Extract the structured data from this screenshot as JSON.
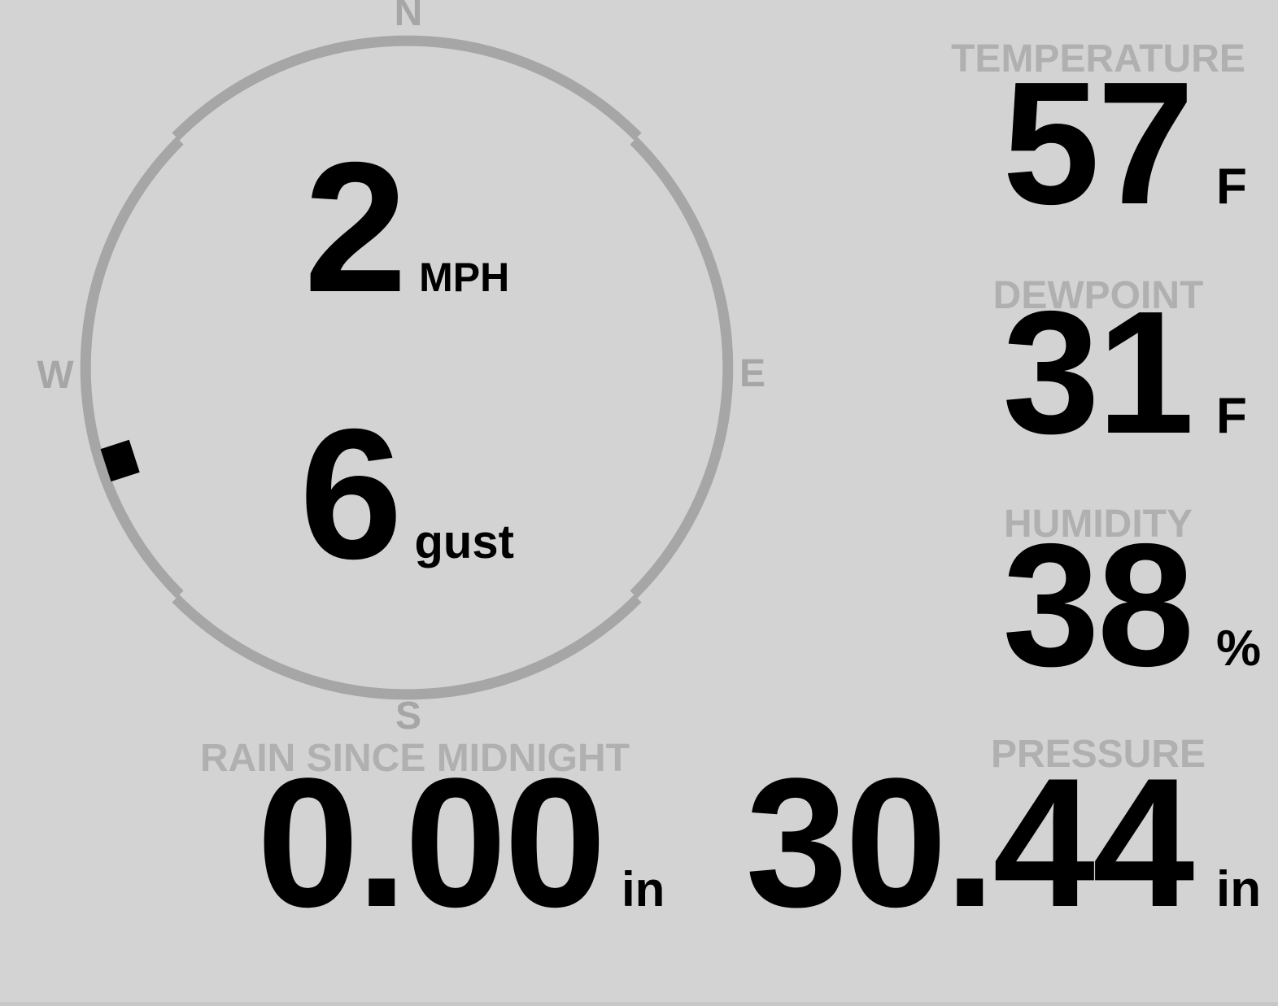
{
  "theme": {
    "background": "#d3d3d3",
    "label_gray": "#b0b0b0",
    "ring_gray": "#a6a6a6",
    "value_black": "#000000"
  },
  "wind": {
    "compass": {
      "north": "N",
      "east": "E",
      "south": "S",
      "west": "W"
    },
    "direction_deg": 252,
    "speed": {
      "value": "2",
      "unit": "MPH"
    },
    "gust": {
      "value": "6",
      "unit": "gust"
    }
  },
  "metrics": {
    "temperature": {
      "label": "TEMPERATURE",
      "value": "57",
      "unit": "F"
    },
    "dewpoint": {
      "label": "DEWPOINT",
      "value": "31",
      "unit": "F"
    },
    "humidity": {
      "label": "HUMIDITY",
      "value": "38",
      "unit": "%"
    },
    "rain": {
      "label": "RAIN SINCE MIDNIGHT",
      "value": "0.00",
      "unit": "in"
    },
    "pressure": {
      "label": "PRESSURE",
      "value": "30.44",
      "unit": "in"
    }
  }
}
